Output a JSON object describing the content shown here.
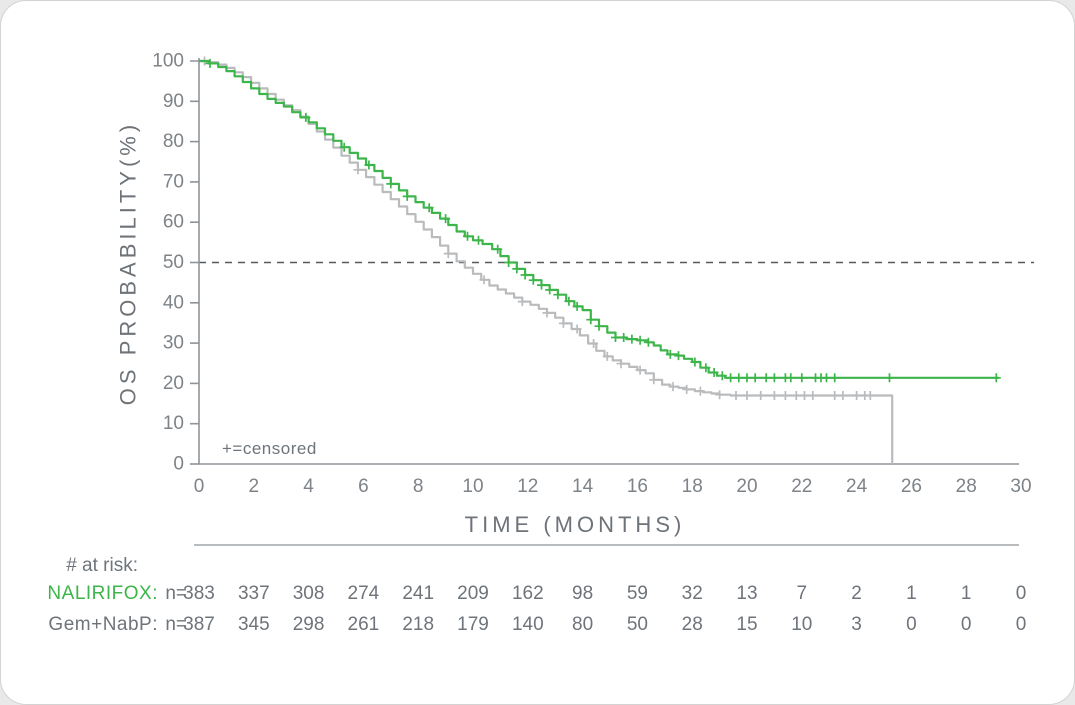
{
  "chart_data": {
    "type": "line",
    "subtype": "kaplan-meier-step",
    "title": "",
    "xlabel": "TIME (MONTHS)",
    "ylabel": "OS PROBABILITY(%)",
    "xlim": [
      0,
      30
    ],
    "ylim": [
      0,
      100
    ],
    "xticks": [
      0,
      2,
      4,
      6,
      8,
      10,
      12,
      14,
      16,
      18,
      20,
      22,
      24,
      26,
      28,
      30
    ],
    "yticks": [
      0,
      10,
      20,
      30,
      40,
      50,
      60,
      70,
      80,
      90,
      100
    ],
    "grid": false,
    "legend_position": "none",
    "censored_note": "+=censored",
    "reference_line": {
      "y": 50,
      "style": "dashed",
      "color": "#55595d"
    },
    "colors": {
      "axis": "#8f9499",
      "tick_label": "#7d8388",
      "axis_title": "#6d7378",
      "table_text": "#6e747a",
      "dashed": "#55595d"
    },
    "series": [
      {
        "name": "NALIRIFOX",
        "color": "#3db54b",
        "points": [
          [
            0,
            100
          ],
          [
            0.35,
            99.4
          ],
          [
            0.7,
            98.5
          ],
          [
            1.0,
            97.5
          ],
          [
            1.3,
            96.2
          ],
          [
            1.6,
            94.8
          ],
          [
            1.9,
            93.2
          ],
          [
            2.2,
            91.8
          ],
          [
            2.5,
            90.6
          ],
          [
            2.8,
            89.6
          ],
          [
            3.1,
            88.7
          ],
          [
            3.4,
            87.3
          ],
          [
            3.7,
            86.0
          ],
          [
            4.0,
            84.8
          ],
          [
            4.3,
            83.3
          ],
          [
            4.6,
            81.8
          ],
          [
            4.9,
            80.2
          ],
          [
            5.2,
            78.6
          ],
          [
            5.5,
            77.2
          ],
          [
            5.8,
            75.8
          ],
          [
            6.1,
            74.2
          ],
          [
            6.4,
            72.7
          ],
          [
            6.7,
            71.0
          ],
          [
            7.0,
            69.5
          ],
          [
            7.3,
            67.9
          ],
          [
            7.6,
            66.4
          ],
          [
            7.9,
            65.0
          ],
          [
            8.2,
            63.6
          ],
          [
            8.5,
            62.3
          ],
          [
            8.8,
            60.9
          ],
          [
            9.1,
            59.3
          ],
          [
            9.4,
            57.7
          ],
          [
            9.7,
            56.5
          ],
          [
            10.0,
            55.5
          ],
          [
            10.35,
            54.6
          ],
          [
            10.7,
            53.3
          ],
          [
            11.0,
            51.6
          ],
          [
            11.3,
            50.0
          ],
          [
            11.6,
            48.4
          ],
          [
            11.9,
            46.9
          ],
          [
            12.2,
            45.6
          ],
          [
            12.5,
            44.4
          ],
          [
            12.8,
            43.2
          ],
          [
            13.1,
            42.0
          ],
          [
            13.4,
            40.4
          ],
          [
            13.7,
            39.1
          ],
          [
            14.0,
            38.2
          ],
          [
            14.3,
            35.8
          ],
          [
            14.6,
            34.2
          ],
          [
            14.9,
            32.6
          ],
          [
            15.2,
            31.4
          ],
          [
            15.6,
            31.0
          ],
          [
            16.0,
            30.7
          ],
          [
            16.35,
            30.2
          ],
          [
            16.6,
            29.4
          ],
          [
            16.85,
            28.2
          ],
          [
            17.1,
            27.2
          ],
          [
            17.45,
            26.9
          ],
          [
            17.7,
            26.1
          ],
          [
            18.0,
            25.3
          ],
          [
            18.3,
            23.9
          ],
          [
            18.6,
            22.7
          ],
          [
            18.9,
            21.9
          ],
          [
            19.2,
            21.4
          ],
          [
            29.2,
            21.4
          ]
        ],
        "censor_marks": [
          0.4,
          3.9,
          5.3,
          6.2,
          7.0,
          7.6,
          8.4,
          9.0,
          9.8,
          10.2,
          10.9,
          11.3,
          11.6,
          11.9,
          12.2,
          12.5,
          12.8,
          13.1,
          13.5,
          13.8,
          14.3,
          14.6,
          15.2,
          15.5,
          15.8,
          16.1,
          16.4,
          17.2,
          17.5,
          18.1,
          18.5,
          18.8,
          19.1,
          19.4,
          19.7,
          20.0,
          20.3,
          20.7,
          21.0,
          21.4,
          21.6,
          22.0,
          22.5,
          22.7,
          22.9,
          23.2,
          25.2,
          29.1
        ]
      },
      {
        "name": "Gem+NabP",
        "color": "#b9bbbd",
        "points": [
          [
            0,
            100
          ],
          [
            0.35,
            99.7
          ],
          [
            0.7,
            99.1
          ],
          [
            1.0,
            98.3
          ],
          [
            1.3,
            97.2
          ],
          [
            1.6,
            96.0
          ],
          [
            1.9,
            94.6
          ],
          [
            2.2,
            93.2
          ],
          [
            2.5,
            91.8
          ],
          [
            2.8,
            90.4
          ],
          [
            3.1,
            89.0
          ],
          [
            3.4,
            87.8
          ],
          [
            3.7,
            86.2
          ],
          [
            4.0,
            84.4
          ],
          [
            4.3,
            82.5
          ],
          [
            4.6,
            80.5
          ],
          [
            4.9,
            78.5
          ],
          [
            5.2,
            76.5
          ],
          [
            5.5,
            74.8
          ],
          [
            5.8,
            73.0
          ],
          [
            6.1,
            71.2
          ],
          [
            6.4,
            69.3
          ],
          [
            6.7,
            67.5
          ],
          [
            7.0,
            65.7
          ],
          [
            7.3,
            63.9
          ],
          [
            7.6,
            62.0
          ],
          [
            7.9,
            60.1
          ],
          [
            8.2,
            58.2
          ],
          [
            8.5,
            56.3
          ],
          [
            8.8,
            54.2
          ],
          [
            9.1,
            52.2
          ],
          [
            9.4,
            50.3
          ],
          [
            9.7,
            48.7
          ],
          [
            10.0,
            47.2
          ],
          [
            10.3,
            45.7
          ],
          [
            10.6,
            44.3
          ],
          [
            10.9,
            43.3
          ],
          [
            11.2,
            42.3
          ],
          [
            11.5,
            41.3
          ],
          [
            11.8,
            40.3
          ],
          [
            12.1,
            39.5
          ],
          [
            12.4,
            38.5
          ],
          [
            12.7,
            37.5
          ],
          [
            13.0,
            36.3
          ],
          [
            13.3,
            34.9
          ],
          [
            13.6,
            33.5
          ],
          [
            13.9,
            31.9
          ],
          [
            14.2,
            29.9
          ],
          [
            14.5,
            28.1
          ],
          [
            14.8,
            26.7
          ],
          [
            15.1,
            25.7
          ],
          [
            15.4,
            24.9
          ],
          [
            15.7,
            24.1
          ],
          [
            16.0,
            23.3
          ],
          [
            16.3,
            22.5
          ],
          [
            16.6,
            20.9
          ],
          [
            16.9,
            19.7
          ],
          [
            17.2,
            19.2
          ],
          [
            17.5,
            18.9
          ],
          [
            17.8,
            18.5
          ],
          [
            18.1,
            18.1
          ],
          [
            18.4,
            17.8
          ],
          [
            18.7,
            17.5
          ],
          [
            19.0,
            17.2
          ],
          [
            19.4,
            17.0
          ],
          [
            25.3,
            17.0
          ],
          [
            25.3,
            0
          ]
        ],
        "censor_marks": [
          0.2,
          5.8,
          9.1,
          10.4,
          11.8,
          12.7,
          13.3,
          13.8,
          14.4,
          14.9,
          15.4,
          16.1,
          16.6,
          17.3,
          17.8,
          18.3,
          19.0,
          19.6,
          20.0,
          20.5,
          21.0,
          21.4,
          21.8,
          22.1,
          22.4,
          23.2,
          23.5,
          24.0,
          24.3,
          24.5
        ]
      }
    ],
    "at_risk": {
      "header": "# at risk:",
      "n_prefix": "n=",
      "times": [
        0,
        2,
        4,
        6,
        8,
        10,
        12,
        14,
        16,
        18,
        20,
        22,
        24,
        26,
        28,
        30
      ],
      "rows": [
        {
          "label": "NALIRIFOX:",
          "color": "#3db54b",
          "text_color": "#6e747a",
          "counts": [
            383,
            337,
            308,
            274,
            241,
            209,
            162,
            98,
            59,
            32,
            13,
            7,
            2,
            1,
            1,
            0
          ]
        },
        {
          "label": "Gem+NabP:",
          "color": "#6e747a",
          "text_color": "#6e747a",
          "counts": [
            387,
            345,
            298,
            261,
            218,
            179,
            140,
            80,
            50,
            28,
            15,
            10,
            3,
            0,
            0,
            0
          ]
        }
      ]
    }
  }
}
